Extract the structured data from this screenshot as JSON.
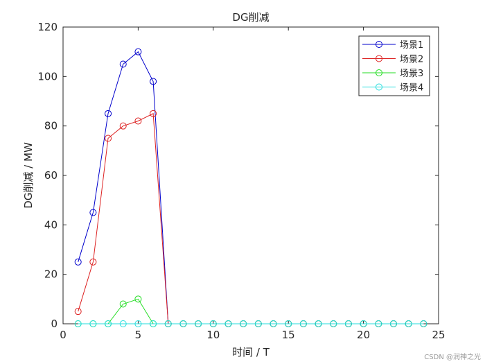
{
  "chart_data": {
    "type": "line",
    "title": "DG削减",
    "xlabel": "时间 / T",
    "ylabel": "DG削减 / MW",
    "xlim": [
      0,
      25
    ],
    "ylim": [
      0,
      120
    ],
    "xticks": [
      0,
      5,
      10,
      15,
      20,
      25
    ],
    "yticks": [
      0,
      20,
      40,
      60,
      80,
      100,
      120
    ],
    "grid": false,
    "legend_position": "top-right",
    "x": [
      1,
      2,
      3,
      4,
      5,
      6,
      7,
      8,
      9,
      10,
      11,
      12,
      13,
      14,
      15,
      16,
      17,
      18,
      19,
      20,
      21,
      22,
      23,
      24
    ],
    "series": [
      {
        "name": "场景1",
        "color": "#0000cc",
        "values": [
          25,
          45,
          85,
          105,
          110,
          98,
          0,
          0,
          0,
          0,
          0,
          0,
          0,
          0,
          0,
          0,
          0,
          0,
          0,
          0,
          0,
          0,
          0,
          0
        ]
      },
      {
        "name": "场景2",
        "color": "#dd2222",
        "values": [
          5,
          25,
          75,
          80,
          82,
          85,
          0,
          0,
          0,
          0,
          0,
          0,
          0,
          0,
          0,
          0,
          0,
          0,
          0,
          0,
          0,
          0,
          0,
          0
        ]
      },
      {
        "name": "场景3",
        "color": "#22dd22",
        "values": [
          0,
          0,
          0,
          8,
          10,
          0,
          0,
          0,
          0,
          0,
          0,
          0,
          0,
          0,
          0,
          0,
          0,
          0,
          0,
          0,
          0,
          0,
          0,
          0
        ]
      },
      {
        "name": "场景4",
        "color": "#22dddd",
        "values": [
          0,
          0,
          0,
          0,
          0,
          0,
          0,
          0,
          0,
          0,
          0,
          0,
          0,
          0,
          0,
          0,
          0,
          0,
          0,
          0,
          0,
          0,
          0,
          0
        ]
      }
    ]
  },
  "watermark": "CSDN @润神之光"
}
